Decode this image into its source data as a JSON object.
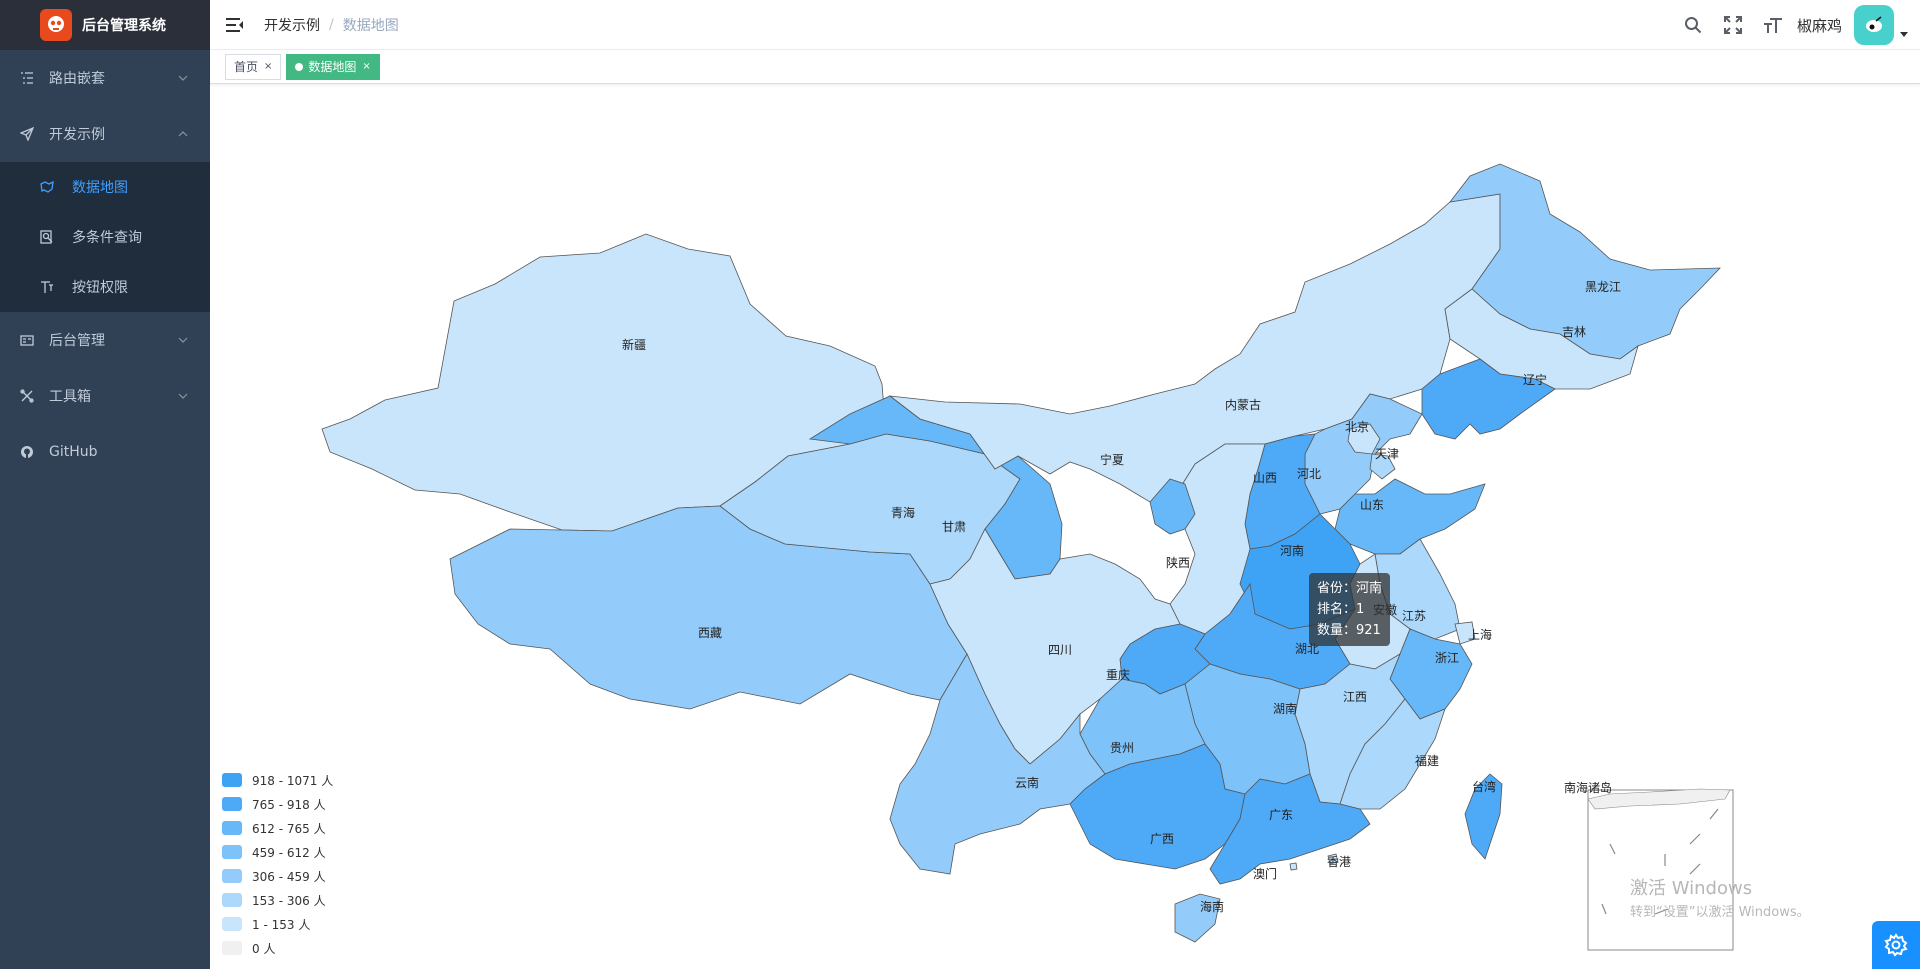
{
  "app": {
    "title": "后台管理系统"
  },
  "sidebar": {
    "items": [
      {
        "label": "路由嵌套",
        "icon": "list-icon",
        "expanded": false
      },
      {
        "label": "开发示例",
        "icon": "send-icon",
        "expanded": true,
        "children": [
          {
            "label": "数据地图",
            "icon": "map-icon",
            "active": true
          },
          {
            "label": "多条件查询",
            "icon": "search-doc-icon"
          },
          {
            "label": "按钮权限",
            "icon": "permission-icon"
          }
        ]
      },
      {
        "label": "后台管理",
        "icon": "id-card-icon",
        "expanded": false
      },
      {
        "label": "工具箱",
        "icon": "tools-icon",
        "expanded": false
      },
      {
        "label": "GitHub",
        "icon": "github-icon"
      }
    ]
  },
  "navbar": {
    "breadcrumb": [
      "开发示例",
      "数据地图"
    ],
    "breadcrumb_sep": "/",
    "username": "椒麻鸡"
  },
  "tags": [
    {
      "label": "首页",
      "close": "×"
    },
    {
      "label": "数据地图",
      "close": "×"
    }
  ],
  "map": {
    "provinces": {
      "xinjiang": "新疆",
      "xizang": "西藏",
      "qinghai": "青海",
      "gansu": "甘肃",
      "neimenggu": "内蒙古",
      "heilongjiang": "黑龙江",
      "jilin": "吉林",
      "liaoning": "辽宁",
      "beijing": "北京",
      "tianjin": "天津",
      "hebei": "河北",
      "shanxi": "山西",
      "shandong": "山东",
      "henan": "河南",
      "shaanxi": "陕西",
      "ningxia": "宁夏",
      "sichuan": "四川",
      "chongqing": "重庆",
      "hubei": "湖北",
      "jiangsu": "江苏",
      "shanghai": "上海",
      "zhejiang": "浙江",
      "anhui": "安徽",
      "jiangxi": "江西",
      "hunan": "湖南",
      "guizhou": "贵州",
      "yunnan": "云南",
      "guangxi": "广西",
      "guangdong": "广东",
      "fujian": "福建",
      "taiwan": "台湾",
      "hainan": "海南",
      "hongkong": "香港",
      "macao": "澳门"
    },
    "inset_title": "南海诸岛",
    "tooltip": {
      "province_label": "省份：",
      "province": "河南",
      "rank_label": "排名：",
      "rank": "1",
      "count_label": "数量：",
      "count": "921"
    },
    "legend": [
      {
        "label": "918 - 1071 人",
        "color": "#3fa3f5"
      },
      {
        "label": "765 - 918 人",
        "color": "#4eaaf7"
      },
      {
        "label": "612 - 765 人",
        "color": "#67b8f8"
      },
      {
        "label": "459 - 612 人",
        "color": "#7ec2fa"
      },
      {
        "label": "306 - 459 人",
        "color": "#93ccfa"
      },
      {
        "label": "153 - 306 人",
        "color": "#acd8fb"
      },
      {
        "label": "1 - 153 人",
        "color": "#c9e5fb"
      },
      {
        "label": "0 人",
        "color": "#f0f0f0"
      }
    ]
  },
  "watermark": {
    "line1": "激活 Windows",
    "line2": "转到“设置”以激活 Windows。"
  }
}
